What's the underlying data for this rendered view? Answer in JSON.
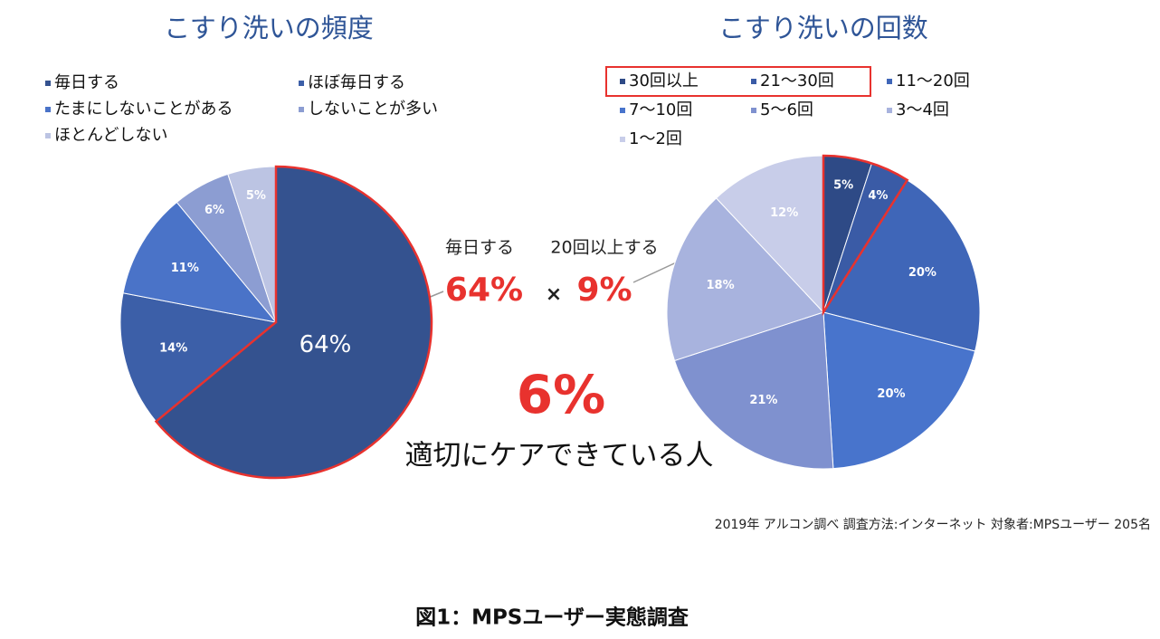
{
  "chart_data": [
    {
      "type": "pie",
      "title": "こすり洗いの頻度",
      "categories": [
        "毎日する",
        "ほぼ毎日する",
        "たまにしないことがある",
        "しないことが多い",
        "ほとんどしない"
      ],
      "values": [
        64,
        14,
        11,
        6,
        5
      ],
      "value_labels": [
        "64%",
        "14%",
        "11%",
        "6%",
        "5%"
      ],
      "colors": [
        "#34528f",
        "#3c5fa8",
        "#4a73c8",
        "#8c9dd2",
        "#bcc4e3"
      ]
    },
    {
      "type": "pie",
      "title": "こすり洗いの回数",
      "categories": [
        "30回以上",
        "21～30回",
        "11～20回",
        "7～10回",
        "5～6回",
        "3～4回",
        "1～2回"
      ],
      "values": [
        5,
        4,
        20,
        20,
        21,
        18,
        12
      ],
      "value_labels": [
        "5%",
        "4%",
        "20%",
        "20%",
        "21%",
        "18%",
        "12%"
      ],
      "colors": [
        "#2e4a86",
        "#3a5ba6",
        "#3f66b8",
        "#4874cc",
        "#7f91cf",
        "#a8b3de",
        "#c8cde9"
      ]
    }
  ],
  "annotations": {
    "left_label": "毎日する",
    "right_label": "20回以上する",
    "left_value": "64%",
    "times": "×",
    "right_value": "9%",
    "result_value": "6%",
    "result_label": "適切にケアできている人"
  },
  "source": "2019年 アルコン調べ  調査方法:インターネット  対象者:MPSユーザー 205名",
  "caption": "図1：MPSユーザー実態調査"
}
